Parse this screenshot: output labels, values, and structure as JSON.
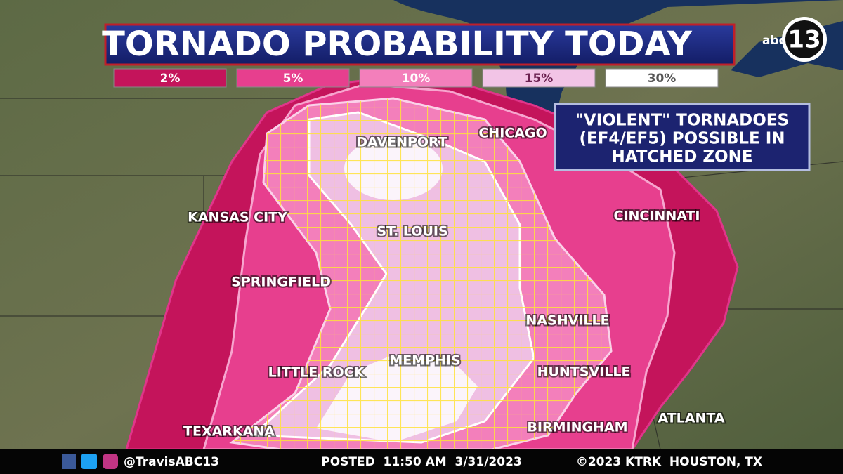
{
  "header": {
    "title": "TORNADO PROBABILITY TODAY"
  },
  "legend": [
    "2%",
    "5%",
    "10%",
    "15%",
    "30%"
  ],
  "logo": {
    "network": "abc",
    "channel": "13"
  },
  "callout": [
    "\"VIOLENT\" TORNADOES",
    "(EF4/EF5) POSSIBLE IN",
    "HATCHED ZONE"
  ],
  "cities": [
    "DAVENPORT",
    "CHICAGO",
    "KANSAS CITY",
    "CINCINNATI",
    "ST. LOUIS",
    "SPRINGFIELD",
    "NASHVILLE",
    "MEMPHIS",
    "LITTLE ROCK",
    "HUNTSVILLE",
    "TEXARKANA",
    "BIRMINGHAM",
    "ATLANTA"
  ],
  "footer": {
    "handle": "@TravisABC13",
    "posted": "POSTED  11:50 AM  3/31/2023",
    "copyright": "©2023 KTRK  HOUSTON, TX"
  }
}
